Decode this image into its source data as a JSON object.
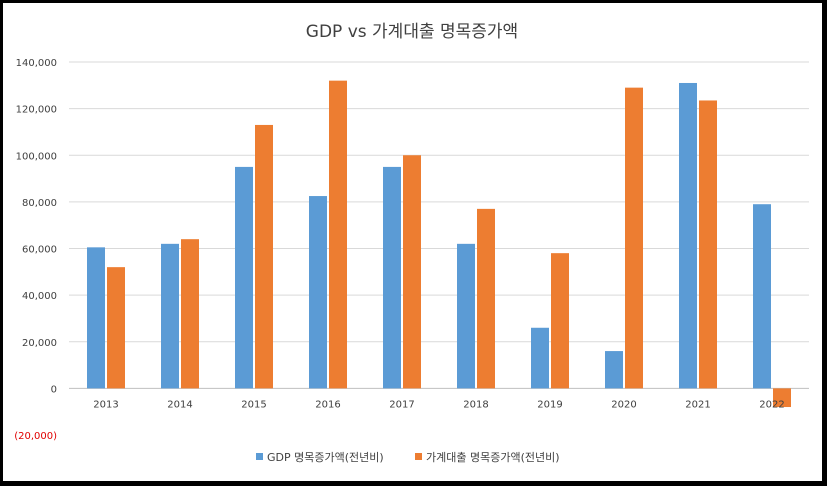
{
  "chart_data": {
    "type": "bar",
    "title": "GDP vs 가계대출 명목증가액",
    "categories": [
      "2013",
      "2014",
      "2015",
      "2016",
      "2017",
      "2018",
      "2019",
      "2020",
      "2021",
      "2022"
    ],
    "series": [
      {
        "name": "GDP 명목증가액(전년비)",
        "color": "#5b9bd5",
        "values": [
          60500,
          62000,
          95000,
          82500,
          95000,
          62000,
          26000,
          16000,
          131000,
          79000
        ]
      },
      {
        "name": "가계대출 명목증가액(전년비)",
        "color": "#ed7d31",
        "values": [
          52000,
          64000,
          113000,
          132000,
          100000,
          77000,
          58000,
          129000,
          123500,
          -8000
        ]
      }
    ],
    "ylim": [
      -20000,
      140000
    ],
    "yticks": [
      -20000,
      0,
      20000,
      40000,
      60000,
      80000,
      100000,
      120000,
      140000
    ],
    "ytick_labels": [
      "(20,000)",
      "0",
      "20,000",
      "40,000",
      "60,000",
      "80,000",
      "100,000",
      "120,000",
      "140,000"
    ],
    "xlabel": "",
    "ylabel": "",
    "grid": true,
    "legend_position": "bottom",
    "negative_label_color": "#e00000"
  }
}
